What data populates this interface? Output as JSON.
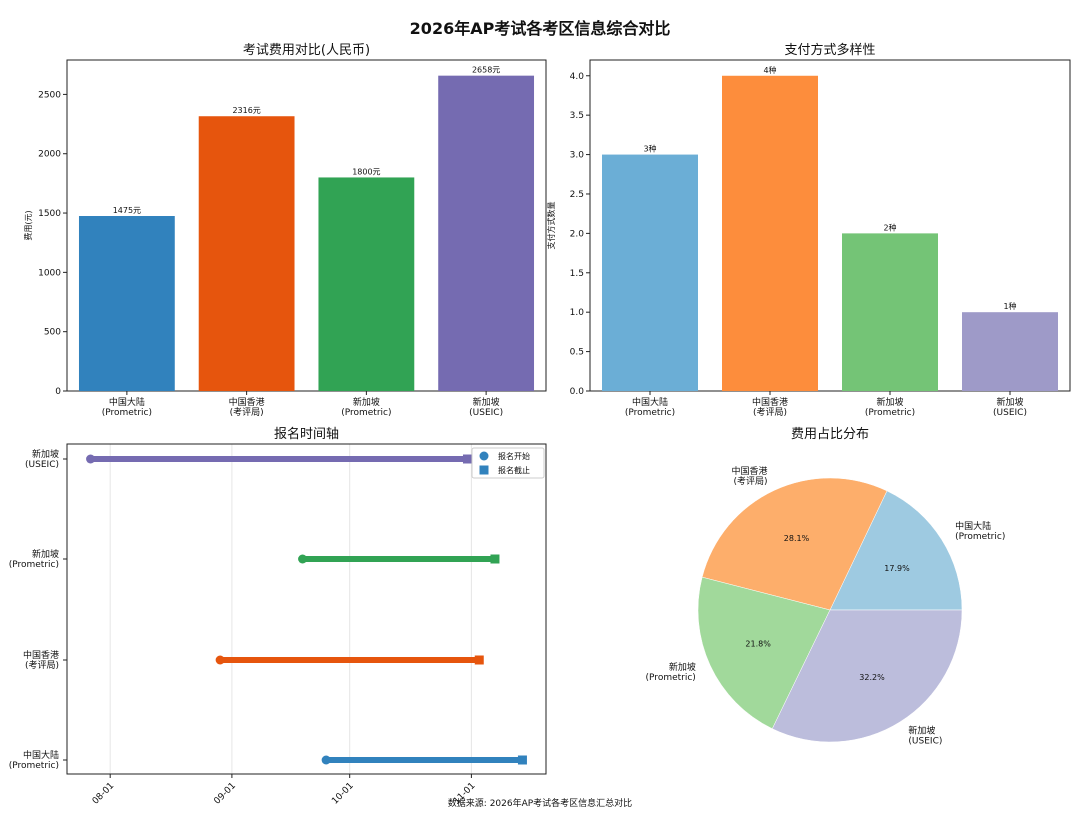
{
  "figure": {
    "title": "2026年AP考试各考区信息综合对比",
    "footer": "数据来源: 2026年AP考试各考区信息汇总对比"
  },
  "chart_data": [
    {
      "type": "bar",
      "title": "考试费用对比(人民币)",
      "xlabel": "",
      "ylabel": "费用(元)",
      "ylim": [
        0,
        2790
      ],
      "yticks": [
        "0",
        "500",
        "1000",
        "1500",
        "2000",
        "2500"
      ],
      "grid": false,
      "categories": [
        [
          "中国大陆",
          "(Prometric)"
        ],
        [
          "中国香港",
          "(考评局)"
        ],
        [
          "新加坡",
          "(Prometric)"
        ],
        [
          "新加坡",
          "(USEIC)"
        ]
      ],
      "values": [
        1475,
        2316,
        1800,
        2658
      ],
      "value_labels": [
        "1475元",
        "2316元",
        "1800元",
        "2658元"
      ],
      "colors": [
        "#3182bd",
        "#e6550d",
        "#31a354",
        "#756bb1"
      ]
    },
    {
      "type": "bar",
      "title": "支付方式多样性",
      "xlabel": "",
      "ylabel": "支付方式数量",
      "ylim": [
        0,
        4.2
      ],
      "yticks": [
        "0.0",
        "0.5",
        "1.0",
        "1.5",
        "2.0",
        "2.5",
        "3.0",
        "3.5",
        "4.0"
      ],
      "grid": false,
      "categories": [
        [
          "中国大陆",
          "(Prometric)"
        ],
        [
          "中国香港",
          "(考评局)"
        ],
        [
          "新加坡",
          "(Prometric)"
        ],
        [
          "新加坡",
          "(USEIC)"
        ]
      ],
      "values": [
        3,
        4,
        2,
        1
      ],
      "value_labels": [
        "3种",
        "4种",
        "2种",
        "1种"
      ],
      "colors": [
        "#6baed6",
        "#fd8d3c",
        "#74c476",
        "#9e9ac8"
      ]
    },
    {
      "type": "timeline",
      "title": "报名时间轴",
      "xlabel": "",
      "ylabel": "",
      "xticks": [
        "08-01",
        "09-01",
        "10-01",
        "11-01"
      ],
      "grid": true,
      "legend": {
        "position": "top-right",
        "start_label": "报名开始",
        "end_label": "报名截止"
      },
      "rows": [
        {
          "label": [
            "中国大陆",
            "(Prometric)"
          ],
          "start": "2025-09-25",
          "end": "2025-11-14",
          "color": "#3182bd"
        },
        {
          "label": [
            "中国香港",
            "(考评局)"
          ],
          "start": "2025-08-29",
          "end": "2025-11-03",
          "color": "#e6550d"
        },
        {
          "label": [
            "新加坡",
            "(Prometric)"
          ],
          "start": "2025-09-19",
          "end": "2025-11-07",
          "color": "#31a354"
        },
        {
          "label": [
            "新加坡",
            "(USEIC)"
          ],
          "start": "2025-07-27",
          "end": "2025-10-31",
          "color": "#756bb1"
        }
      ]
    },
    {
      "type": "pie",
      "title": "费用占比分布",
      "slices": [
        {
          "label": [
            "中国大陆",
            "(Prometric)"
          ],
          "value": 17.9,
          "pct_label": "17.9%",
          "color": "#9ecae1"
        },
        {
          "label": [
            "中国香港",
            "(考评局)"
          ],
          "value": 28.1,
          "pct_label": "28.1%",
          "color": "#fdae6b"
        },
        {
          "label": [
            "新加坡",
            "(Prometric)"
          ],
          "value": 21.8,
          "pct_label": "21.8%",
          "color": "#a1d99b"
        },
        {
          "label": [
            "新加坡",
            "(USEIC)"
          ],
          "value": 32.2,
          "pct_label": "32.2%",
          "color": "#bcbddc"
        }
      ]
    }
  ]
}
